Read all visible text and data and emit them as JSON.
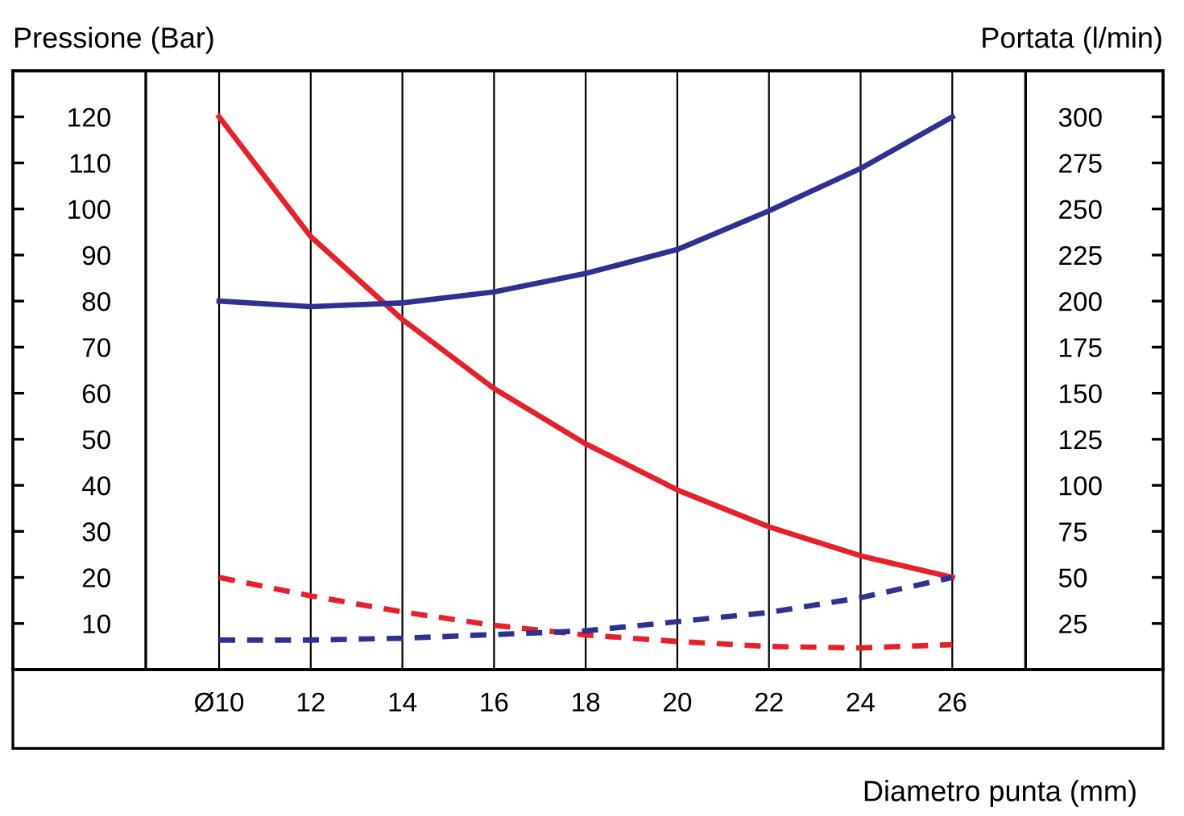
{
  "chart_data": {
    "type": "line",
    "ylabel": "Pressione (Bar)",
    "y2label": "Portata (l/min)",
    "xlabel": "Diametro punta (mm)",
    "x": [
      10,
      12,
      14,
      16,
      18,
      20,
      22,
      24,
      26
    ],
    "xlim": [
      5.5,
      30.6
    ],
    "xticks": [
      {
        "value": 10,
        "label": "Ø10"
      },
      12,
      14,
      16,
      18,
      20,
      22,
      24,
      26
    ],
    "ylim": [
      0,
      130
    ],
    "yticks": [
      10,
      20,
      30,
      40,
      50,
      60,
      70,
      80,
      90,
      100,
      110,
      120
    ],
    "y2lim": [
      0,
      325
    ],
    "y2ticks": [
      25,
      50,
      75,
      100,
      125,
      150,
      175,
      200,
      225,
      250,
      275,
      300
    ],
    "grid": "x",
    "ref_lines": [
      {
        "axis": "x",
        "value": 8.4,
        "color": "#000000"
      },
      {
        "axis": "x",
        "value": 27.6,
        "color": "#000000"
      }
    ],
    "series": [
      {
        "color": "#e8202a",
        "line_style": "solid",
        "values": [
          120,
          94,
          76,
          61,
          49,
          39,
          31,
          24.7,
          20
        ]
      },
      {
        "color": "#2e3192",
        "line_style": "solid",
        "axis": "y2",
        "values": [
          200,
          197,
          199,
          205,
          215,
          228,
          249,
          272,
          300
        ]
      },
      {
        "color": "#e8202a",
        "line_style": "dashed",
        "values": [
          20,
          16,
          12.5,
          9.6,
          7.5,
          6.1,
          5,
          4.7,
          5.4
        ]
      },
      {
        "color": "#2e3192",
        "line_style": "dashed",
        "axis": "y2",
        "values": [
          16,
          16,
          17,
          19,
          21,
          26,
          31,
          39,
          50
        ]
      }
    ]
  }
}
